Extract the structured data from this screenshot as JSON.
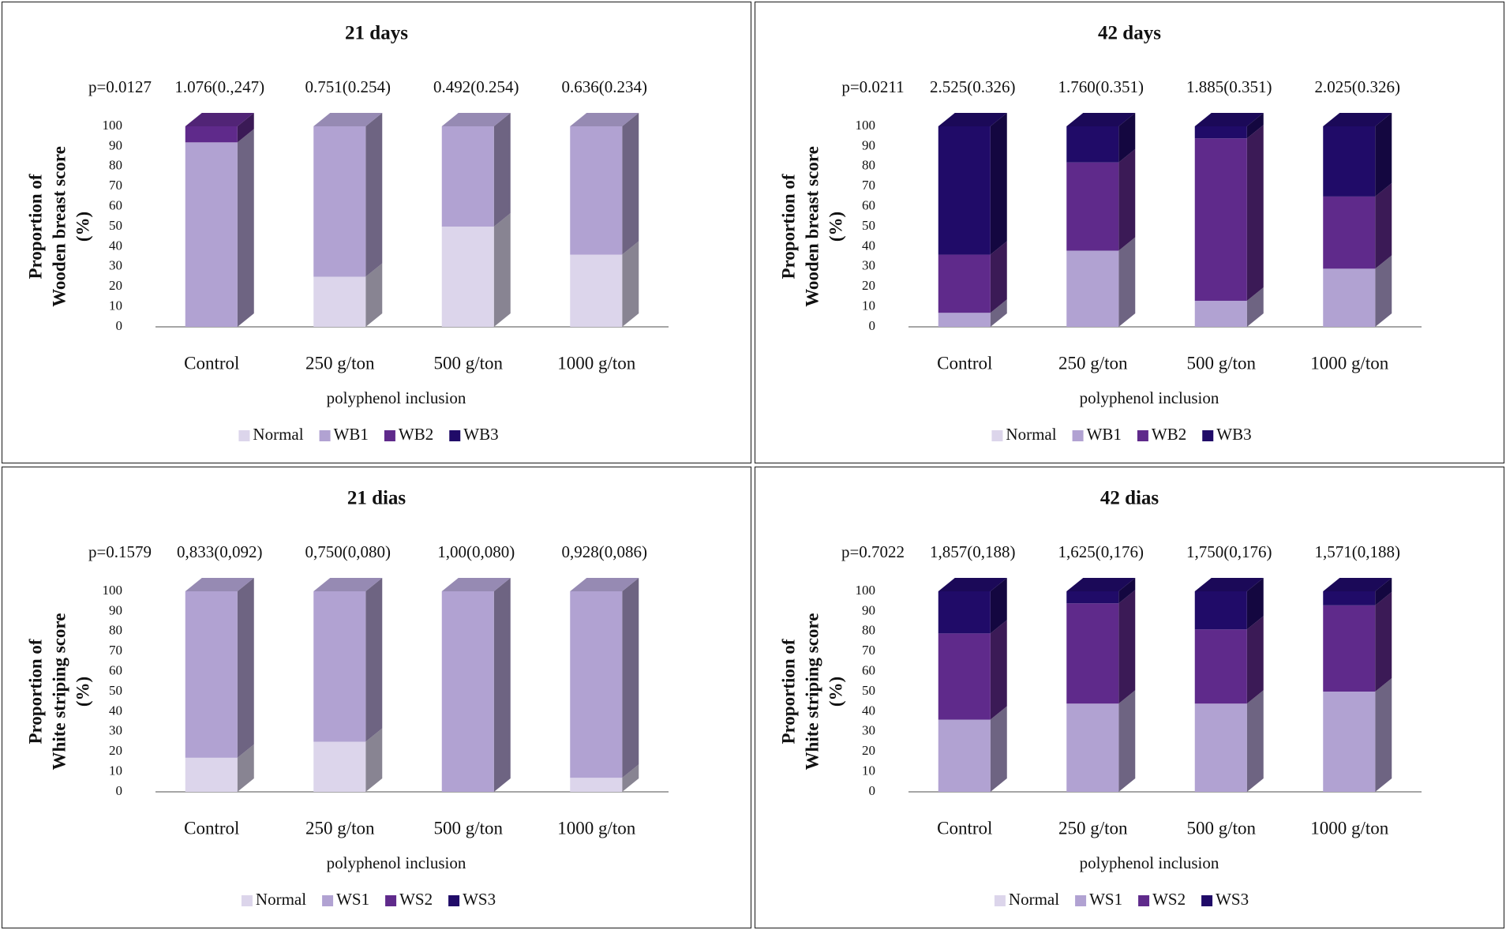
{
  "chart_data": [
    {
      "type": "stacked-3d-bar",
      "title": "21 days",
      "ylabel": [
        "Proportion of",
        "Wooden breast score",
        "(%)"
      ],
      "xlabel": "polyphenol inclusion",
      "p_value": "p=0.0127",
      "means": [
        "1.076(0.,247)",
        "0.751(0.254)",
        "0.492(0.254)",
        "0.636(0.234)"
      ],
      "categories": [
        "Control",
        "250 g/ton",
        "500 g/ton",
        "1000 g/ton"
      ],
      "series": [
        {
          "name": "Normal",
          "color": "#dcd5eb",
          "values": [
            0,
            25,
            50,
            36
          ]
        },
        {
          "name": "WB1",
          "color": "#b1a2d2",
          "values": [
            92,
            75,
            50,
            64
          ]
        },
        {
          "name": "WB2",
          "color": "#5f2a8b",
          "values": [
            8,
            0,
            0,
            0
          ]
        },
        {
          "name": "WB3",
          "color": "#200b68",
          "values": [
            0,
            0,
            0,
            0
          ]
        }
      ],
      "ylim": [
        0,
        100
      ],
      "yticks": [
        0,
        10,
        20,
        30,
        40,
        50,
        60,
        70,
        80,
        90,
        100
      ],
      "legend": "bottom"
    },
    {
      "type": "stacked-3d-bar",
      "title": "42 days",
      "ylabel": [
        "Proportion of",
        "Wooden breast score",
        "(%)"
      ],
      "xlabel": "polyphenol inclusion",
      "p_value": "p=0.0211",
      "means": [
        "2.525(0.326)",
        "1.760(0.351)",
        "1.885(0.351)",
        "2.025(0.326)"
      ],
      "categories": [
        "Control",
        "250 g/ton",
        "500 g/ton",
        "1000 g/ton"
      ],
      "series": [
        {
          "name": "Normal",
          "color": "#dcd5eb",
          "values": [
            0,
            0,
            0,
            0
          ]
        },
        {
          "name": "WB1",
          "color": "#b1a2d2",
          "values": [
            7,
            38,
            13,
            29
          ]
        },
        {
          "name": "WB2",
          "color": "#5f2a8b",
          "values": [
            29,
            44,
            81,
            36
          ]
        },
        {
          "name": "WB3",
          "color": "#200b68",
          "values": [
            64,
            18,
            6,
            35
          ]
        }
      ],
      "ylim": [
        0,
        100
      ],
      "yticks": [
        0,
        10,
        20,
        30,
        40,
        50,
        60,
        70,
        80,
        90,
        100
      ],
      "legend": "bottom"
    },
    {
      "type": "stacked-3d-bar",
      "title": "21 dias",
      "ylabel": [
        "Proportion of",
        "White striping score",
        "(%)"
      ],
      "xlabel": "polyphenol inclusion",
      "p_value": "p=0.1579",
      "means": [
        "0,833(0,092)",
        "0,750(0,080)",
        "1,00(0,080)",
        "0,928(0,086)"
      ],
      "categories": [
        "Control",
        "250 g/ton",
        "500 g/ton",
        "1000 g/ton"
      ],
      "series": [
        {
          "name": "Normal",
          "color": "#dcd5eb",
          "values": [
            17,
            25,
            0,
            7
          ]
        },
        {
          "name": "WS1",
          "color": "#b1a2d2",
          "values": [
            83,
            75,
            100,
            93
          ]
        },
        {
          "name": "WS2",
          "color": "#5f2a8b",
          "values": [
            0,
            0,
            0,
            0
          ]
        },
        {
          "name": "WS3",
          "color": "#200b68",
          "values": [
            0,
            0,
            0,
            0
          ]
        }
      ],
      "ylim": [
        0,
        100
      ],
      "yticks": [
        0,
        10,
        20,
        30,
        40,
        50,
        60,
        70,
        80,
        90,
        100
      ],
      "legend": "bottom"
    },
    {
      "type": "stacked-3d-bar",
      "title": "42 dias",
      "ylabel": [
        "Proportion of",
        "White striping score",
        "(%)"
      ],
      "xlabel": "polyphenol inclusion",
      "p_value": "p=0.7022",
      "means": [
        "1,857(0,188)",
        "1,625(0,176)",
        "1,750(0,176)",
        "1,571(0,188)"
      ],
      "categories": [
        "Control",
        "250 g/ton",
        "500 g/ton",
        "1000 g/ton"
      ],
      "series": [
        {
          "name": "Normal",
          "color": "#dcd5eb",
          "values": [
            0,
            0,
            0,
            0
          ]
        },
        {
          "name": "WS1",
          "color": "#b1a2d2",
          "values": [
            36,
            44,
            44,
            50
          ]
        },
        {
          "name": "WS2",
          "color": "#5f2a8b",
          "values": [
            43,
            50,
            37,
            43
          ]
        },
        {
          "name": "WS3",
          "color": "#200b68",
          "values": [
            21,
            6,
            19,
            7
          ]
        }
      ],
      "ylim": [
        0,
        100
      ],
      "yticks": [
        0,
        10,
        20,
        30,
        40,
        50,
        60,
        70,
        80,
        90,
        100
      ],
      "legend": "bottom"
    }
  ]
}
